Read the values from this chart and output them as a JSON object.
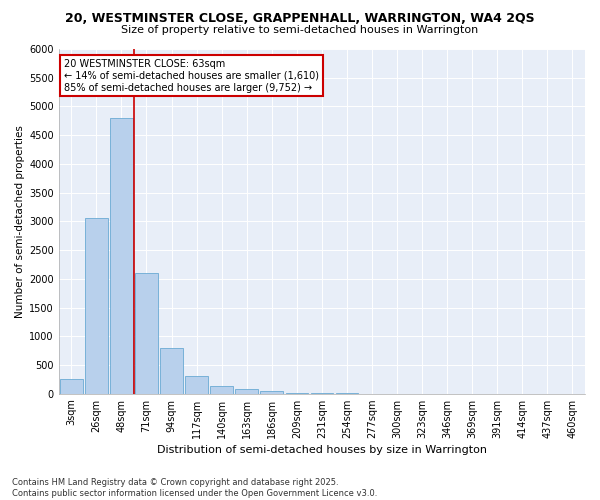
{
  "title": "20, WESTMINSTER CLOSE, GRAPPENHALL, WARRINGTON, WA4 2QS",
  "subtitle": "Size of property relative to semi-detached houses in Warrington",
  "xlabel": "Distribution of semi-detached houses by size in Warrington",
  "ylabel": "Number of semi-detached properties",
  "bar_values": [
    250,
    3050,
    4800,
    2100,
    800,
    310,
    140,
    80,
    40,
    20,
    10,
    5,
    0,
    0,
    0,
    0,
    0,
    0,
    0,
    0,
    0
  ],
  "bin_labels": [
    "3sqm",
    "26sqm",
    "48sqm",
    "71sqm",
    "94sqm",
    "117sqm",
    "140sqm",
    "163sqm",
    "186sqm",
    "209sqm",
    "231sqm",
    "254sqm",
    "277sqm",
    "300sqm",
    "323sqm",
    "346sqm",
    "369sqm",
    "391sqm",
    "414sqm",
    "437sqm",
    "460sqm"
  ],
  "bar_color": "#b8d0ec",
  "bar_edge_color": "#6aaad4",
  "background_color": "#e8eef8",
  "grid_color": "#ffffff",
  "vline_x": 3,
  "vline_color": "#cc0000",
  "annotation_text": "20 WESTMINSTER CLOSE: 63sqm\n← 14% of semi-detached houses are smaller (1,610)\n85% of semi-detached houses are larger (9,752) →",
  "annotation_box_color": "#cc0000",
  "footer_text": "Contains HM Land Registry data © Crown copyright and database right 2025.\nContains public sector information licensed under the Open Government Licence v3.0.",
  "ylim": [
    0,
    6000
  ],
  "yticks": [
    0,
    500,
    1000,
    1500,
    2000,
    2500,
    3000,
    3500,
    4000,
    4500,
    5000,
    5500,
    6000
  ],
  "title_fontsize": 9,
  "subtitle_fontsize": 8,
  "xlabel_fontsize": 8,
  "ylabel_fontsize": 7.5,
  "tick_fontsize": 7,
  "annotation_fontsize": 7,
  "footer_fontsize": 6
}
